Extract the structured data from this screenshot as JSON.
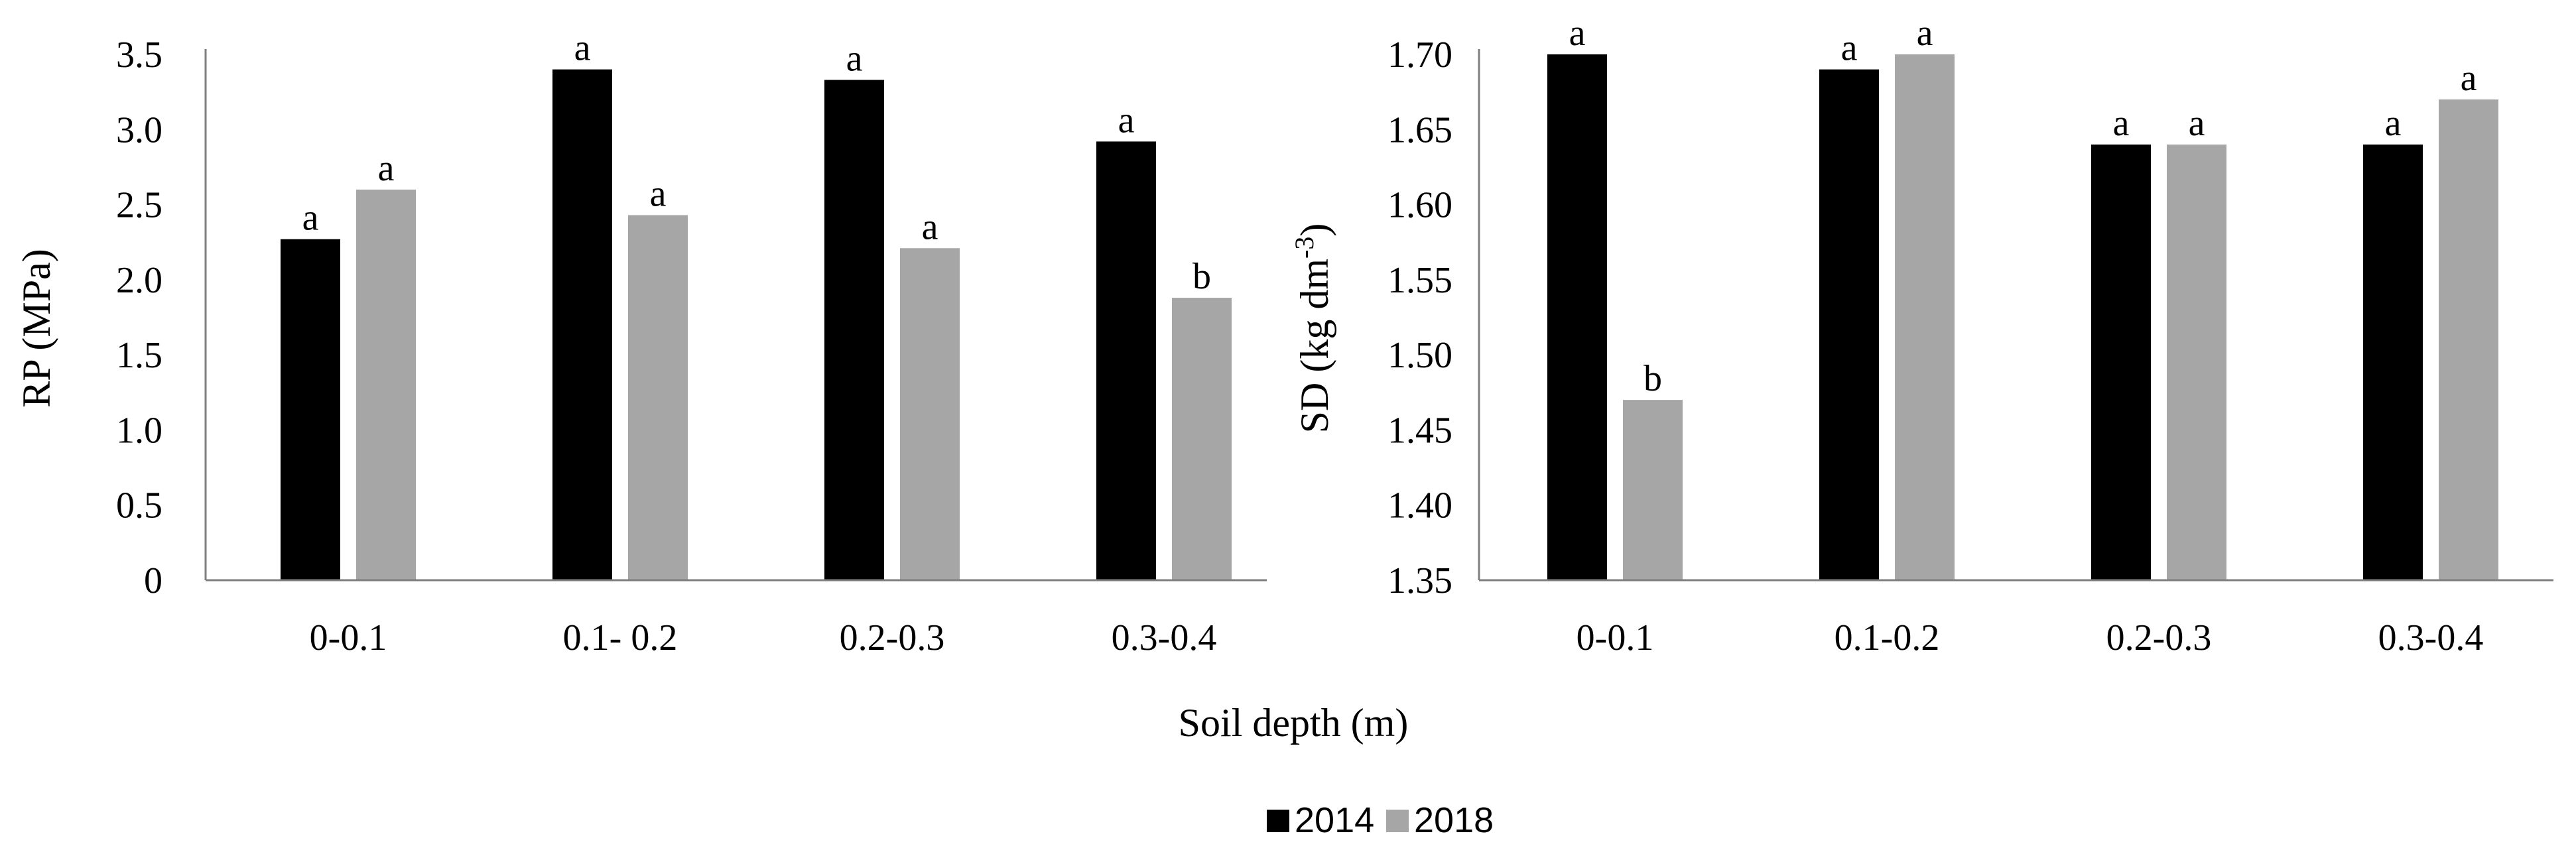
{
  "figure": {
    "shared_xlabel": "Soil depth (m)",
    "legend": [
      {
        "label": "2014",
        "color": "#000000"
      },
      {
        "label": "2018",
        "color": "#a6a6a6"
      }
    ]
  },
  "chart_data": [
    {
      "type": "bar",
      "title": "",
      "ylabel": "RP (MPa)",
      "xlabel": "Soil depth (m)",
      "categories": [
        "0-0.1",
        "0.1- 0.2",
        "0.2-0.3",
        "0.3-0.4"
      ],
      "ylim": [
        0,
        3.5
      ],
      "yticks": [
        0,
        0.5,
        1.0,
        1.5,
        2.0,
        2.5,
        3.0,
        3.5
      ],
      "ytick_labels": [
        "0",
        "0.5",
        "1.0",
        "1.5",
        "2.0",
        "2.5",
        "3.0",
        "3.5"
      ],
      "grid": false,
      "series": [
        {
          "name": "2014",
          "color": "#000000",
          "values": [
            2.27,
            3.4,
            3.33,
            2.92
          ],
          "labels": [
            "a",
            "a",
            "a",
            "a"
          ]
        },
        {
          "name": "2018",
          "color": "#a6a6a6",
          "values": [
            2.6,
            2.43,
            2.21,
            1.88
          ],
          "labels": [
            "a",
            "a",
            "a",
            "b"
          ]
        }
      ]
    },
    {
      "type": "bar",
      "title": "",
      "ylabel": "SD (kg dm-3)",
      "ylabel_main": "SD (kg dm",
      "ylabel_sup": "-3",
      "ylabel_close": ")",
      "xlabel": "Soil depth (m)",
      "categories": [
        "0-0.1",
        "0.1-0.2",
        "0.2-0.3",
        "0.3-0.4"
      ],
      "ylim": [
        1.35,
        1.7
      ],
      "yticks": [
        1.35,
        1.4,
        1.45,
        1.5,
        1.55,
        1.6,
        1.65,
        1.7
      ],
      "ytick_labels": [
        "1.35",
        "1.40",
        "1.45",
        "1.50",
        "1.55",
        "1.60",
        "1.65",
        "1.70"
      ],
      "grid": false,
      "series": [
        {
          "name": "2014",
          "color": "#000000",
          "values": [
            1.7,
            1.69,
            1.64,
            1.64
          ],
          "labels": [
            "a",
            "a",
            "a",
            "a"
          ]
        },
        {
          "name": "2018",
          "color": "#a6a6a6",
          "values": [
            1.47,
            1.7,
            1.64,
            1.67
          ],
          "labels": [
            "b",
            "a",
            "a",
            "a"
          ]
        }
      ]
    }
  ]
}
